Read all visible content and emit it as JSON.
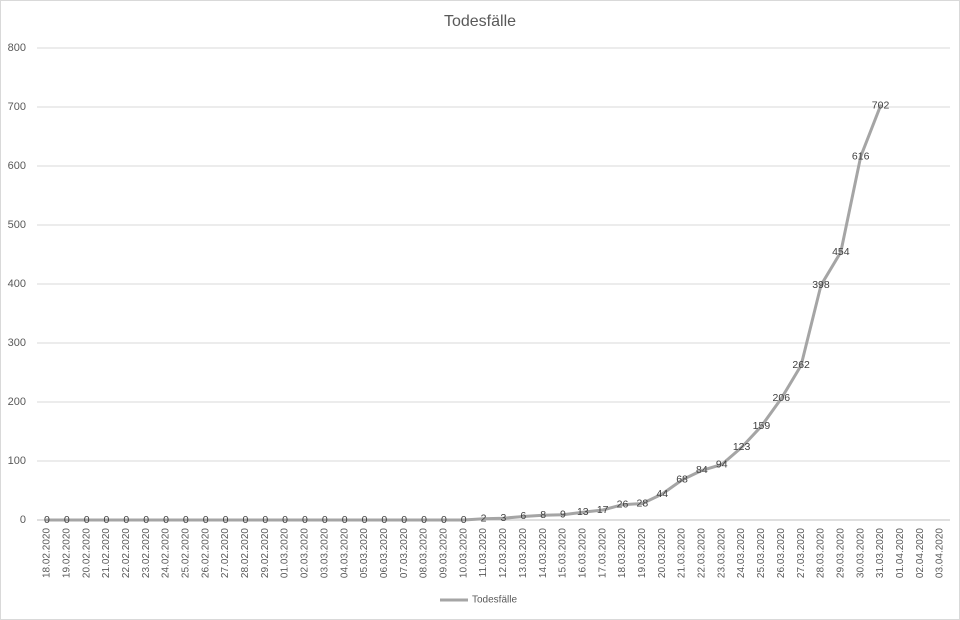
{
  "chart_data": {
    "type": "line",
    "title": "Todesfälle",
    "categories": [
      "18.02.2020",
      "19.02.2020",
      "20.02.2020",
      "21.02.2020",
      "22.02.2020",
      "23.02.2020",
      "24.02.2020",
      "25.02.2020",
      "26.02.2020",
      "27.02.2020",
      "28.02.2020",
      "29.02.2020",
      "01.03.2020",
      "02.03.2020",
      "03.03.2020",
      "04.03.2020",
      "05.03.2020",
      "06.03.2020",
      "07.03.2020",
      "08.03.2020",
      "09.03.2020",
      "10.03.2020",
      "11.03.2020",
      "12.03.2020",
      "13.03.2020",
      "14.03.2020",
      "15.03.2020",
      "16.03.2020",
      "17.03.2020",
      "18.03.2020",
      "19.03.2020",
      "20.03.2020",
      "21.03.2020",
      "22.03.2020",
      "23.03.2020",
      "24.03.2020",
      "25.03.2020",
      "26.03.2020",
      "27.03.2020",
      "28.03.2020",
      "29.03.2020",
      "30.03.2020",
      "31.03.2020",
      "01.04.2020",
      "02.04.2020",
      "03.04.2020"
    ],
    "series": [
      {
        "name": "Todesfälle",
        "color": "#a5a5a5",
        "values": [
          0,
          0,
          0,
          0,
          0,
          0,
          0,
          0,
          0,
          0,
          0,
          0,
          0,
          0,
          0,
          0,
          0,
          0,
          0,
          0,
          0,
          0,
          2,
          3,
          6,
          8,
          9,
          13,
          17,
          26,
          28,
          44,
          68,
          84,
          94,
          123,
          159,
          206,
          262,
          398,
          454,
          616,
          702,
          null,
          null,
          null
        ]
      }
    ],
    "ylim": [
      0,
      800
    ],
    "yticks": [
      0,
      100,
      200,
      300,
      400,
      500,
      600,
      700,
      800
    ],
    "grid": true,
    "legend": "bottom",
    "data_labels": true
  }
}
